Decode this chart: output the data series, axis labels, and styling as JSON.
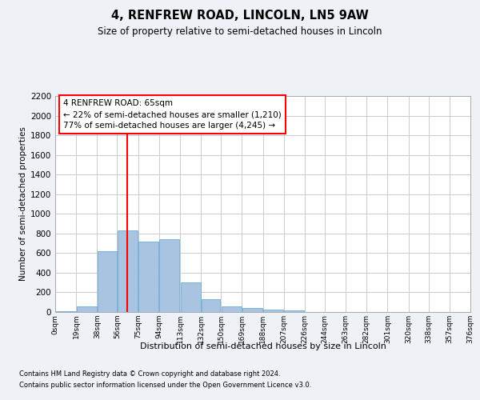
{
  "title": "4, RENFREW ROAD, LINCOLN, LN5 9AW",
  "subtitle": "Size of property relative to semi-detached houses in Lincoln",
  "xlabel": "Distribution of semi-detached houses by size in Lincoln",
  "ylabel": "Number of semi-detached properties",
  "footer_line1": "Contains HM Land Registry data © Crown copyright and database right 2024.",
  "footer_line2": "Contains public sector information licensed under the Open Government Licence v3.0.",
  "bin_edges": [
    0,
    19,
    38,
    56,
    75,
    94,
    113,
    132,
    150,
    169,
    188,
    207,
    226,
    244,
    263,
    282,
    301,
    320,
    338,
    357,
    376
  ],
  "bin_labels": [
    "0sqm",
    "19sqm",
    "38sqm",
    "56sqm",
    "75sqm",
    "94sqm",
    "113sqm",
    "132sqm",
    "150sqm",
    "169sqm",
    "188sqm",
    "207sqm",
    "226sqm",
    "244sqm",
    "263sqm",
    "282sqm",
    "301sqm",
    "320sqm",
    "338sqm",
    "357sqm",
    "376sqm"
  ],
  "bar_values": [
    10,
    60,
    620,
    830,
    720,
    740,
    300,
    130,
    60,
    40,
    25,
    15,
    0,
    0,
    0,
    0,
    0,
    0,
    0,
    0
  ],
  "bar_color": "#a8c4e0",
  "bar_edgecolor": "#6baed6",
  "property_size": 65,
  "property_line_color": "red",
  "annotation_text": "4 RENFREW ROAD: 65sqm\n← 22% of semi-detached houses are smaller (1,210)\n77% of semi-detached houses are larger (4,245) →",
  "annotation_box_color": "white",
  "annotation_box_edgecolor": "red",
  "ylim": [
    0,
    2200
  ],
  "yticks": [
    0,
    200,
    400,
    600,
    800,
    1000,
    1200,
    1400,
    1600,
    1800,
    2000,
    2200
  ],
  "bg_color": "#eef2f7",
  "plot_bg_color": "white",
  "grid_color": "#cccccc"
}
